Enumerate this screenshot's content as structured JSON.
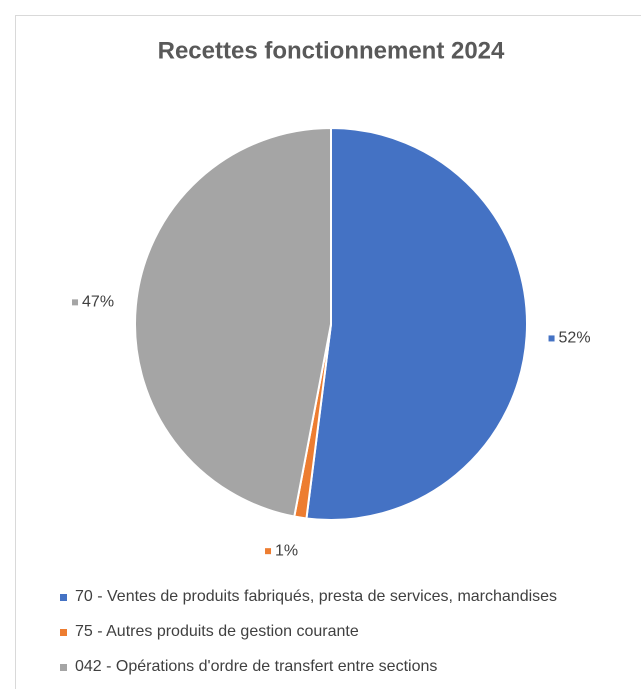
{
  "chart_data": {
    "type": "pie",
    "title": "Recettes fonctionnement 2024",
    "categories": [
      "70 - Ventes de produits fabriqués, presta de services, marchandises",
      "75 - Autres produits de gestion courante",
      "042 - Opérations d'ordre de transfert entre sections"
    ],
    "values": [
      52,
      1,
      47
    ],
    "value_labels": [
      "52%",
      "1%",
      "47%"
    ],
    "colors": [
      "#4472c4",
      "#ed7d31",
      "#a5a5a5"
    ]
  }
}
